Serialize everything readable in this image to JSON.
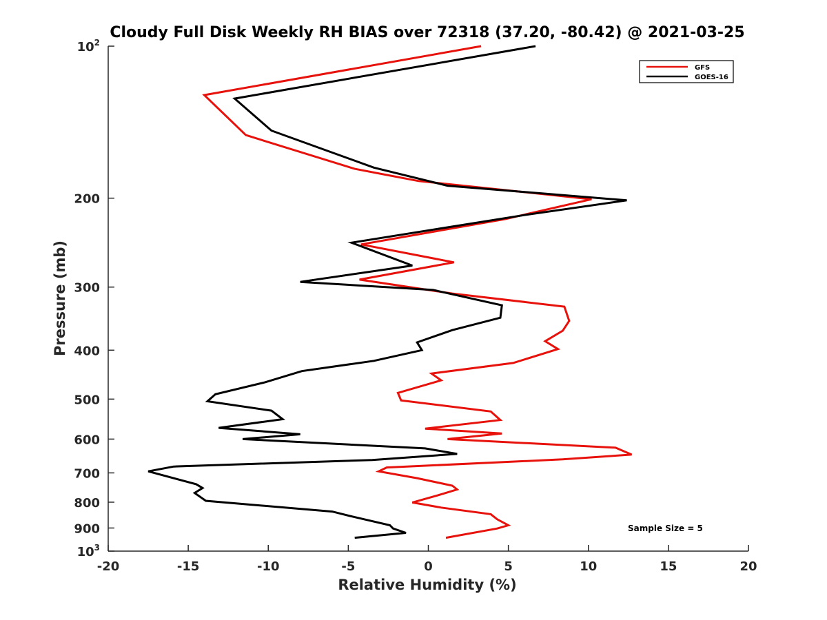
{
  "chart_data": {
    "type": "line",
    "title": "Cloudy Full Disk Weekly RH BIAS over 72318 (37.20, -80.42) @ 2021-03-25",
    "xlabel": "Relative Humidity (%)",
    "ylabel": "Pressure (mb)",
    "xlim": [
      -20,
      20
    ],
    "ylim": [
      100,
      1000
    ],
    "yscale": "log",
    "y_reversed": true,
    "grid": false,
    "legend_position": "top-right",
    "x_ticks": [
      {
        "value": -20,
        "label": "-20"
      },
      {
        "value": -15,
        "label": "-15"
      },
      {
        "value": -10,
        "label": "-10"
      },
      {
        "value": -5,
        "label": "-5"
      },
      {
        "value": 0,
        "label": "0"
      },
      {
        "value": 5,
        "label": "5"
      },
      {
        "value": 10,
        "label": "10"
      },
      {
        "value": 15,
        "label": "15"
      },
      {
        "value": 20,
        "label": "20"
      }
    ],
    "y_ticks": [
      {
        "value": 100,
        "base": "10",
        "exp": "2"
      },
      {
        "value": 200,
        "label": "200"
      },
      {
        "value": 300,
        "label": "300"
      },
      {
        "value": 400,
        "label": "400"
      },
      {
        "value": 500,
        "label": "500"
      },
      {
        "value": 600,
        "label": "600"
      },
      {
        "value": 700,
        "label": "700"
      },
      {
        "value": 800,
        "label": "800"
      },
      {
        "value": 900,
        "label": "900"
      },
      {
        "value": 1000,
        "base": "10",
        "exp": "3"
      }
    ],
    "annotation": "Sample Size = 5",
    "series": [
      {
        "name": "GFS",
        "color": "#e8120c",
        "points": [
          [
            3.3,
            100
          ],
          [
            -14.0,
            125
          ],
          [
            -11.4,
            150
          ],
          [
            -4.6,
            175
          ],
          [
            -0.6,
            185
          ],
          [
            10.2,
            201
          ],
          [
            4.8,
            220
          ],
          [
            -4.2,
            247
          ],
          [
            1.6,
            268
          ],
          [
            -4.3,
            290
          ],
          [
            1.5,
            309
          ],
          [
            8.5,
            328
          ],
          [
            8.8,
            350
          ],
          [
            8.4,
            366
          ],
          [
            7.3,
            384
          ],
          [
            8.1,
            398
          ],
          [
            5.3,
            424
          ],
          [
            0.2,
            445
          ],
          [
            0.8,
            459
          ],
          [
            -1.9,
            486
          ],
          [
            -1.7,
            503
          ],
          [
            3.9,
            529
          ],
          [
            4.5,
            550
          ],
          [
            -0.2,
            572
          ],
          [
            4.6,
            585
          ],
          [
            1.2,
            600
          ],
          [
            11.7,
            624
          ],
          [
            12.7,
            644
          ],
          [
            8.4,
            658
          ],
          [
            -2.6,
            683
          ],
          [
            -3.1,
            695
          ],
          [
            -0.7,
            717
          ],
          [
            1.5,
            742
          ],
          [
            1.8,
            755
          ],
          [
            0.8,
            772
          ],
          [
            -1.0,
            801
          ],
          [
            0.8,
            820
          ],
          [
            3.9,
            845
          ],
          [
            4.3,
            865
          ],
          [
            5.0,
            889
          ],
          [
            4.3,
            902
          ],
          [
            1.1,
            941
          ]
        ]
      },
      {
        "name": "GOES-16",
        "color": "#000000",
        "points": [
          [
            6.7,
            100
          ],
          [
            -12.1,
            127
          ],
          [
            -9.8,
            147
          ],
          [
            -3.4,
            174
          ],
          [
            1.2,
            189
          ],
          [
            12.4,
            202
          ],
          [
            6.0,
            216
          ],
          [
            -4.8,
            245
          ],
          [
            -1.0,
            272
          ],
          [
            -8.0,
            293
          ],
          [
            0.3,
            304
          ],
          [
            4.6,
            326
          ],
          [
            4.5,
            345
          ],
          [
            1.5,
            365
          ],
          [
            -0.7,
            386
          ],
          [
            -0.4,
            400
          ],
          [
            -3.4,
            420
          ],
          [
            -7.9,
            440
          ],
          [
            -10.2,
            463
          ],
          [
            -13.3,
            489
          ],
          [
            -13.8,
            505
          ],
          [
            -9.8,
            527
          ],
          [
            -9.1,
            548
          ],
          [
            -13.1,
            570
          ],
          [
            -8.0,
            587
          ],
          [
            -11.6,
            600
          ],
          [
            -0.2,
            626
          ],
          [
            1.8,
            642
          ],
          [
            -3.5,
            660
          ],
          [
            -15.9,
            680
          ],
          [
            -17.5,
            695
          ],
          [
            -14.5,
            737
          ],
          [
            -14.1,
            750
          ],
          [
            -14.6,
            767
          ],
          [
            -13.9,
            795
          ],
          [
            -6.0,
            835
          ],
          [
            -4.7,
            855
          ],
          [
            -2.4,
            889
          ],
          [
            -2.2,
            902
          ],
          [
            -1.4,
            920
          ],
          [
            -4.6,
            941
          ]
        ]
      }
    ]
  }
}
